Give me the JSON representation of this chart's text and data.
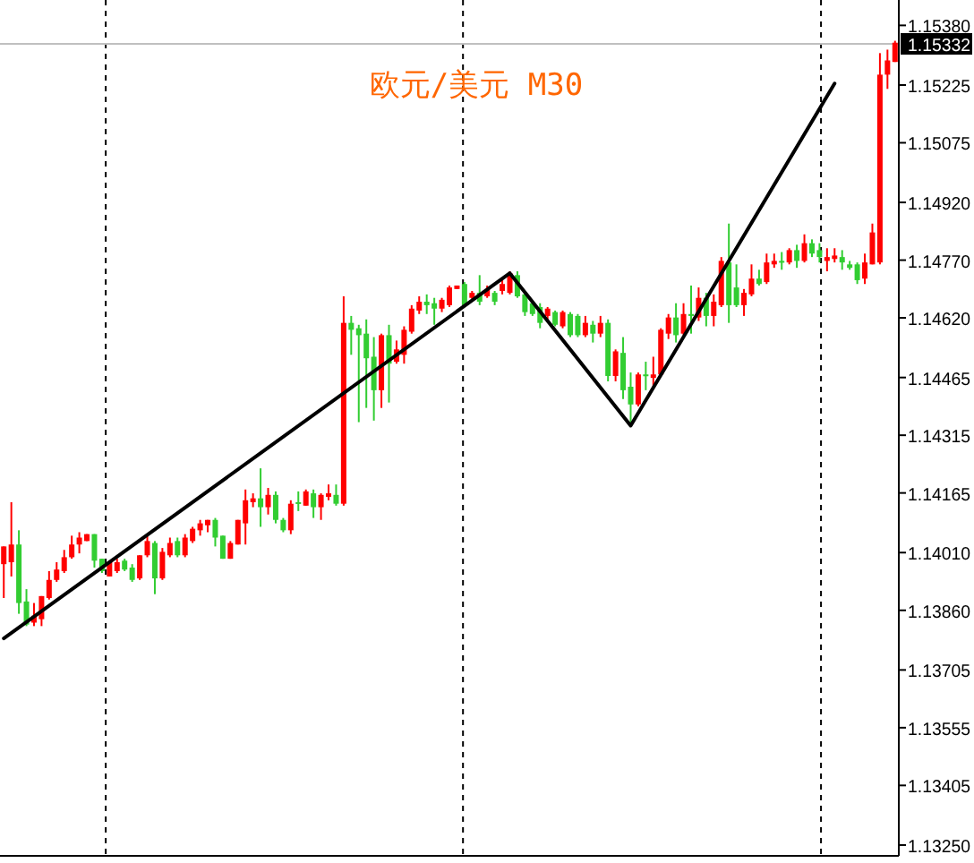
{
  "chart_data": {
    "type": "candlestick",
    "title": "欧元/美元 M30",
    "categories": [
      null,
      null,
      null,
      null,
      null,
      null,
      null,
      null,
      null,
      null,
      null,
      null,
      null,
      null,
      null,
      null,
      null,
      null,
      null,
      null,
      null,
      null,
      null,
      null,
      null,
      null,
      null,
      null,
      null,
      null,
      null,
      null,
      null,
      null,
      null,
      null,
      null,
      null,
      null,
      null,
      null,
      null,
      null,
      null,
      null,
      null,
      null,
      null,
      null,
      null,
      null,
      null,
      null,
      null,
      null,
      null,
      null,
      null,
      null,
      null,
      null,
      null,
      null,
      null,
      null,
      null,
      null,
      null,
      null,
      null,
      null,
      null,
      null,
      null,
      null,
      null,
      null,
      null,
      null,
      null,
      null,
      null,
      null,
      null,
      null,
      null,
      null,
      null,
      null,
      null,
      null,
      null,
      null,
      null,
      null,
      null,
      null,
      null,
      null,
      null,
      null,
      null,
      null,
      null,
      null,
      null,
      null,
      null,
      null,
      null,
      null,
      null,
      null,
      null,
      null,
      null,
      null,
      null,
      null
    ],
    "ohlc": [
      [
        1.1398,
        1.14026,
        1.13892,
        1.14026
      ],
      [
        1.13985,
        1.14141,
        1.13948,
        1.14031
      ],
      [
        1.14031,
        1.14068,
        1.13851,
        1.13879
      ],
      [
        1.13883,
        1.13915,
        1.13819,
        1.13823
      ],
      [
        1.13828,
        1.13879,
        1.13819,
        1.13846
      ],
      [
        1.13837,
        1.13897,
        1.13819,
        1.13897
      ],
      [
        1.13892,
        1.13962,
        1.13888,
        1.13939
      ],
      [
        1.13939,
        1.13985,
        1.13934,
        1.13966
      ],
      [
        1.13962,
        1.14017,
        1.13957,
        1.13998
      ],
      [
        1.13998,
        1.14054,
        1.13994,
        1.14031
      ],
      [
        1.14031,
        1.14063,
        1.14008,
        1.14049
      ],
      [
        1.1404,
        1.14058,
        1.1404,
        1.14058
      ],
      [
        1.14058,
        1.14058,
        1.13971,
        1.13989
      ],
      [
        1.13994,
        1.13994,
        1.13957,
        1.13962
      ],
      [
        1.13948,
        1.13989,
        1.13948,
        1.13985
      ],
      [
        1.13962,
        1.13994,
        1.13957,
        1.13985
      ],
      [
        1.13989,
        1.13994,
        1.13962,
        1.13966
      ],
      [
        1.13971,
        1.1398,
        1.13934,
        1.13939
      ],
      [
        1.13943,
        1.14003,
        1.13939,
        1.14003
      ],
      [
        1.14003,
        1.14054,
        1.13998,
        1.1404
      ],
      [
        1.14035,
        1.1404,
        1.13902,
        1.13943
      ],
      [
        1.13943,
        1.14022,
        1.13939,
        1.14012
      ],
      [
        1.14003,
        1.14049,
        1.13998,
        1.14035
      ],
      [
        1.1404,
        1.14049,
        1.13998,
        1.14003
      ],
      [
        1.14003,
        1.14058,
        1.13998,
        1.14049
      ],
      [
        1.1404,
        1.14077,
        1.14035,
        1.14072
      ],
      [
        1.14068,
        1.14095,
        1.14054,
        1.14086
      ],
      [
        1.14081,
        1.14095,
        1.14063,
        1.14095
      ],
      [
        1.14095,
        1.141,
        1.14026,
        1.14049
      ],
      [
        1.14054,
        1.14054,
        1.13994,
        1.13994
      ],
      [
        1.13994,
        1.1404,
        1.13994,
        1.14035
      ],
      [
        1.14031,
        1.14095,
        1.14031,
        1.14095
      ],
      [
        1.14086,
        1.14174,
        1.14031,
        1.14146
      ],
      [
        1.14141,
        1.14164,
        1.14128,
        1.14151
      ],
      [
        1.14151,
        1.14229,
        1.14077,
        1.14128
      ],
      [
        1.14128,
        1.14178,
        1.14109,
        1.1416
      ],
      [
        1.1416,
        1.14169,
        1.14086,
        1.14095
      ],
      [
        1.14095,
        1.141,
        1.14063,
        1.14068
      ],
      [
        1.14068,
        1.14146,
        1.14058,
        1.14137
      ],
      [
        1.14141,
        1.14169,
        1.14118,
        1.14137
      ],
      [
        1.14132,
        1.14174,
        1.14132,
        1.14169
      ],
      [
        1.14164,
        1.14174,
        1.141,
        1.14128
      ],
      [
        1.14128,
        1.14164,
        1.14095,
        1.1416
      ],
      [
        1.14155,
        1.14187,
        1.14146,
        1.14164
      ],
      [
        1.1416,
        1.14187,
        1.14132,
        1.14137
      ],
      [
        1.14137,
        1.14676,
        1.14132,
        1.14607
      ],
      [
        1.14607,
        1.14625,
        1.14524,
        1.14589
      ],
      [
        1.14593,
        1.14602,
        1.14349,
        1.14575
      ],
      [
        1.14579,
        1.14616,
        1.14386,
        1.14515
      ],
      [
        1.14519,
        1.1457,
        1.14353,
        1.14432
      ],
      [
        1.14432,
        1.14579,
        1.14386,
        1.14575
      ],
      [
        1.14575,
        1.14602,
        1.144,
        1.14501
      ],
      [
        1.14506,
        1.14561,
        1.14501,
        1.14538
      ],
      [
        1.14524,
        1.14598,
        1.14501,
        1.14589
      ],
      [
        1.14584,
        1.14653,
        1.14579,
        1.14644
      ],
      [
        1.14639,
        1.14676,
        1.1463,
        1.14662
      ],
      [
        1.14662,
        1.14681,
        1.1463,
        1.14653
      ],
      [
        1.14658,
        1.14672,
        1.14602,
        1.14644
      ],
      [
        1.14644,
        1.14672,
        1.14635,
        1.14667
      ],
      [
        1.14653,
        1.14704,
        1.14648,
        1.14699
      ],
      [
        1.14695,
        1.14704,
        1.14695,
        1.14704
      ],
      [
        1.14708,
        1.14713,
        1.14653,
        1.14653
      ],
      [
        1.14672,
        1.1469,
        1.14662,
        1.14685
      ],
      [
        1.14685,
        1.14731,
        1.14653,
        1.14662
      ],
      [
        1.14676,
        1.14704,
        1.14672,
        1.14695
      ],
      [
        1.14685,
        1.1469,
        1.14653,
        1.14662
      ],
      [
        1.1469,
        1.14718,
        1.14681,
        1.14708
      ],
      [
        1.14685,
        1.14741,
        1.14681,
        1.14736
      ],
      [
        1.14731,
        1.14741,
        1.14672,
        1.14676
      ],
      [
        1.14681,
        1.14685,
        1.14625,
        1.14635
      ],
      [
        1.14658,
        1.14662,
        1.14625,
        1.1463
      ],
      [
        1.14648,
        1.14658,
        1.14593,
        1.14607
      ],
      [
        1.14625,
        1.14648,
        1.14616,
        1.14644
      ],
      [
        1.14635,
        1.14639,
        1.14598,
        1.14602
      ],
      [
        1.14598,
        1.14639,
        1.14593,
        1.14635
      ],
      [
        1.1463,
        1.14635,
        1.1457,
        1.14575
      ],
      [
        1.14625,
        1.1463,
        1.1457,
        1.14575
      ],
      [
        1.14575,
        1.14625,
        1.1457,
        1.14607
      ],
      [
        1.14602,
        1.14612,
        1.14556,
        1.14579
      ],
      [
        1.14579,
        1.14625,
        1.1457,
        1.14607
      ],
      [
        1.14607,
        1.14616,
        1.14455,
        1.14469
      ],
      [
        1.14469,
        1.14538,
        1.14455,
        1.14533
      ],
      [
        1.14529,
        1.1457,
        1.14409,
        1.14432
      ],
      [
        1.14441,
        1.14478,
        1.14344,
        1.14395
      ],
      [
        1.14395,
        1.14478,
        1.1439,
        1.14473
      ],
      [
        1.14473,
        1.14506,
        1.14432,
        1.14469
      ],
      [
        1.14464,
        1.14519,
        1.14441,
        1.14473
      ],
      [
        1.14473,
        1.14593,
        1.14469,
        1.14589
      ],
      [
        1.14579,
        1.1463,
        1.14565,
        1.14621
      ],
      [
        1.14621,
        1.14658,
        1.14556,
        1.14575
      ],
      [
        1.14579,
        1.14658,
        1.14575,
        1.1463
      ],
      [
        1.1463,
        1.14704,
        1.14579,
        1.14625
      ],
      [
        1.14621,
        1.14699,
        1.14612,
        1.14672
      ],
      [
        1.14672,
        1.14685,
        1.14598,
        1.14625
      ],
      [
        1.14625,
        1.14681,
        1.14598,
        1.14662
      ],
      [
        1.14653,
        1.14778,
        1.14648,
        1.14768
      ],
      [
        1.14764,
        1.14865,
        1.14607,
        1.14653
      ],
      [
        1.14699,
        1.14759,
        1.14648,
        1.14653
      ],
      [
        1.14653,
        1.14695,
        1.14625,
        1.14685
      ],
      [
        1.14681,
        1.14759,
        1.14676,
        1.14722
      ],
      [
        1.14722,
        1.14745,
        1.14704,
        1.14708
      ],
      [
        1.14713,
        1.14787,
        1.14708,
        1.14764
      ],
      [
        1.14759,
        1.14787,
        1.1475,
        1.14768
      ],
      [
        1.14768,
        1.14791,
        1.14745,
        1.14764
      ],
      [
        1.14764,
        1.14801,
        1.14759,
        1.14796
      ],
      [
        1.14796,
        1.1481,
        1.1475,
        1.14768
      ],
      [
        1.14768,
        1.14837,
        1.14764,
        1.14814
      ],
      [
        1.14814,
        1.14824,
        1.14778,
        1.14787
      ],
      [
        1.14796,
        1.14814,
        1.14764,
        1.14778
      ],
      [
        1.14768,
        1.14801,
        1.14741,
        1.14778
      ],
      [
        1.14773,
        1.14801,
        1.14764,
        1.14782
      ],
      [
        1.14778,
        1.14796,
        1.14745,
        1.14764
      ],
      [
        1.14759,
        1.14768,
        1.14745,
        1.1475
      ],
      [
        1.14759,
        1.14764,
        1.14708,
        1.14718
      ],
      [
        1.14722,
        1.14787,
        1.14708,
        1.14764
      ],
      [
        1.14759,
        1.14865,
        1.14759,
        1.14842
      ],
      [
        1.14764,
        1.15308,
        1.14759,
        1.15252
      ],
      [
        1.15252,
        1.15317,
        1.15215,
        1.15289
      ],
      [
        1.15285,
        1.1534,
        1.15285,
        1.15335
      ]
    ],
    "series": [
      {
        "type": "line",
        "values": [
          1.13787,
          null,
          null,
          null,
          null,
          null,
          null,
          null,
          null,
          null,
          null,
          null,
          null,
          null,
          null,
          null,
          null,
          null,
          null,
          null,
          null,
          null,
          null,
          null,
          null,
          null,
          null,
          null,
          null,
          null,
          null,
          null,
          null,
          null,
          null,
          null,
          null,
          null,
          null,
          null,
          null,
          null,
          null,
          null,
          null,
          null,
          null,
          null,
          null,
          null,
          null,
          null,
          null,
          null,
          null,
          null,
          null,
          null,
          null,
          null,
          null,
          null,
          null,
          null,
          null,
          null,
          null,
          1.14736,
          null,
          null,
          null,
          null,
          null,
          null,
          null,
          null,
          null,
          null,
          null,
          null,
          null,
          null,
          null,
          1.1434,
          null,
          null,
          null,
          null,
          null,
          null,
          null,
          null,
          null,
          null,
          null,
          null,
          null,
          null,
          null,
          null,
          null,
          null,
          null,
          null,
          null,
          null,
          null,
          null,
          null,
          null,
          1.15229,
          null,
          null,
          null,
          null,
          null,
          null,
          null,
          null
        ],
        "color": "#000000"
      }
    ],
    "ylim": [
      1.13222,
      1.15446
    ],
    "yticks": [
      {
        "value": 1.1538,
        "label": "1.15380"
      },
      1.15225,
      1.15075,
      {
        "value": 1.1492,
        "label": "1.14920"
      },
      {
        "value": 1.1477,
        "label": "1.14770"
      },
      {
        "value": 1.1462,
        "label": "1.14620"
      },
      1.14465,
      1.14315,
      1.14165,
      {
        "value": 1.1401,
        "label": "1.14010"
      },
      {
        "value": 1.1386,
        "label": "1.13860"
      },
      1.13705,
      1.13555,
      1.13405,
      {
        "value": 1.1325,
        "label": "1.13250"
      }
    ],
    "tick_labels": "y",
    "ref_lines": [
      {
        "axis": "y",
        "value": 1.15332,
        "label": "1.15332",
        "color": "#c0c0c0"
      }
    ]
  }
}
